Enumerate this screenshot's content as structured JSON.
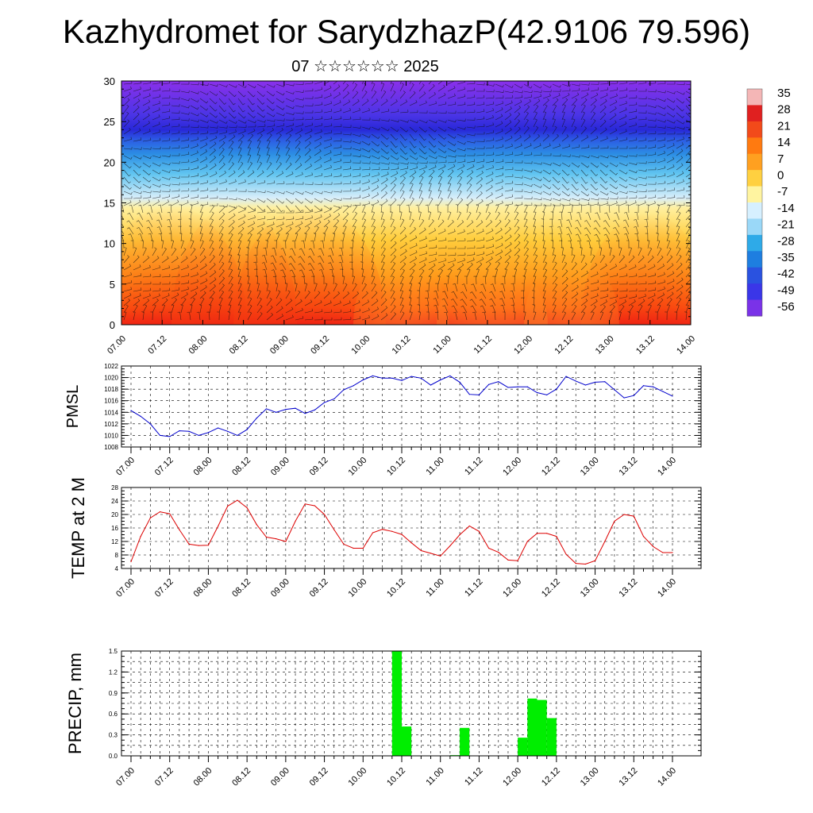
{
  "header": {
    "title": "Kazhydromet for SarydzhazP(42.9106 79.596)",
    "subtitle": "07 ☆☆☆☆☆☆ 2025"
  },
  "chart_data": [
    {
      "type": "heatmap",
      "name": "cross-section",
      "ylim": [
        0,
        30
      ],
      "yticks": [
        0,
        5,
        10,
        15,
        20,
        25,
        30
      ],
      "x_ticks": [
        "07.00",
        "07.12",
        "08.00",
        "08.12",
        "09.00",
        "09.12",
        "10.00",
        "10.12",
        "11.00",
        "11.12",
        "12.00",
        "12.12",
        "13.00",
        "13.12",
        "14.00"
      ],
      "colorbar": {
        "labels": [
          "35",
          "28",
          "21",
          "14",
          "7",
          "0",
          "-7",
          "-14",
          "-21",
          "-28",
          "-35",
          "-42",
          "-49",
          "-56"
        ],
        "colors": [
          "#f4b6b6",
          "#e02020",
          "#f24a1a",
          "#ff7a10",
          "#ffa020",
          "#ffd040",
          "#fff4a0",
          "#d6f0ff",
          "#9ad8f8",
          "#2eaae8",
          "#1e7ee0",
          "#2a52e0",
          "#3a36e8",
          "#7a32e8"
        ]
      }
    },
    {
      "type": "line",
      "name": "PMSL",
      "ylabel": "PMSL",
      "ylim": [
        1008,
        1022
      ],
      "yticks": [
        1008,
        1010,
        1012,
        1014,
        1016,
        1018,
        1020,
        1022
      ],
      "x_ticks": [
        "07.00",
        "07.12",
        "08.00",
        "08.12",
        "09.00",
        "09.12",
        "10.00",
        "10.12",
        "11.00",
        "11.12",
        "12.00",
        "12.12",
        "13.00",
        "13.12",
        "14.00"
      ],
      "color": "#0000cc",
      "x": [
        0,
        3,
        6,
        9,
        12,
        15,
        18,
        21,
        24,
        27,
        30,
        33,
        36,
        39,
        42,
        45,
        48,
        51,
        54,
        57,
        60,
        63,
        66,
        69,
        72,
        75,
        78,
        81,
        84,
        87,
        90,
        93,
        96,
        99,
        102,
        105,
        108,
        111,
        114,
        117,
        120,
        123,
        126,
        129,
        132,
        135,
        138,
        141,
        144,
        147,
        150,
        153,
        156,
        159,
        162,
        165,
        168
      ],
      "y": [
        1014.3,
        1013.3,
        1012,
        1010,
        1009.8,
        1010.8,
        1010.7,
        1010,
        1010.5,
        1011.3,
        1010.7,
        1010,
        1011,
        1013,
        1014.6,
        1014,
        1014.5,
        1014.7,
        1013.8,
        1014.4,
        1015.7,
        1016.3,
        1017.9,
        1018.6,
        1019.6,
        1020.3,
        1019.9,
        1019.9,
        1019.5,
        1020.2,
        1019.9,
        1018.7,
        1019.6,
        1020.3,
        1019.2,
        1017.1,
        1017,
        1018.8,
        1019.3,
        1018.3,
        1018.4,
        1018.4,
        1017.4,
        1017,
        1018,
        1020.2,
        1019.4,
        1018.7,
        1019.2,
        1019.3,
        1017.9,
        1016.5,
        1016.9,
        1018.6,
        1018.4,
        1017.6,
        1016.8
      ]
    },
    {
      "type": "line",
      "name": "TEMP",
      "ylabel": "TEMP at 2 M",
      "ylim": [
        4,
        28
      ],
      "yticks": [
        4,
        8,
        12,
        16,
        20,
        24,
        28
      ],
      "x_ticks": [
        "07.00",
        "07.12",
        "08.00",
        "08.12",
        "09.00",
        "09.12",
        "10.00",
        "10.12",
        "11.00",
        "11.12",
        "12.00",
        "12.12",
        "13.00",
        "13.12",
        "14.00"
      ],
      "color": "#dd0000",
      "x": [
        0,
        3,
        6,
        9,
        12,
        15,
        18,
        21,
        24,
        27,
        30,
        33,
        36,
        39,
        42,
        45,
        48,
        51,
        54,
        57,
        60,
        63,
        66,
        69,
        72,
        75,
        78,
        81,
        84,
        87,
        90,
        93,
        96,
        99,
        102,
        105,
        108,
        111,
        114,
        117,
        120,
        123,
        126,
        129,
        132,
        135,
        138,
        141,
        144,
        147,
        150,
        153,
        156,
        159,
        162,
        165,
        168
      ],
      "y": [
        6,
        13.5,
        19,
        20.8,
        20.2,
        15.5,
        11.2,
        10.8,
        10.9,
        16.5,
        22.5,
        24.2,
        22,
        17,
        13.3,
        12.8,
        12,
        18,
        23.1,
        22.6,
        20,
        15.5,
        11.2,
        10,
        10,
        14.6,
        15.6,
        15,
        14.1,
        11.6,
        9.3,
        8.5,
        7.7,
        10.7,
        14,
        16.6,
        15,
        10,
        8.8,
        6.5,
        6.3,
        12,
        14.4,
        14.4,
        13.5,
        8.2,
        5.5,
        5.3,
        6.3,
        12,
        18,
        20,
        19.5,
        13.5,
        10.5,
        8.7,
        8.7
      ]
    },
    {
      "type": "bar",
      "name": "PRECIP",
      "ylabel": "PRECIP, mm",
      "ylim": [
        0,
        1.5
      ],
      "yticks": [
        "0.0",
        "0.3",
        "0.6",
        "0.9",
        "1.2",
        "1.5"
      ],
      "x_ticks": [
        "07.00",
        "07.12",
        "08.00",
        "08.12",
        "09.00",
        "09.12",
        "10.00",
        "10.12",
        "11.00",
        "11.12",
        "12.00",
        "12.12",
        "13.00",
        "13.12",
        "14.00"
      ],
      "color": "#00ee00",
      "bins": [
        {
          "start": 81,
          "end": 84,
          "value": 1.5
        },
        {
          "start": 84,
          "end": 87,
          "value": 0.42
        },
        {
          "start": 99,
          "end": 102,
          "value": 0.01
        },
        {
          "start": 102,
          "end": 105,
          "value": 0.4
        },
        {
          "start": 120,
          "end": 123,
          "value": 0.26
        },
        {
          "start": 123,
          "end": 126,
          "value": 0.82
        },
        {
          "start": 126,
          "end": 129,
          "value": 0.8
        },
        {
          "start": 129,
          "end": 132,
          "value": 0.54
        }
      ]
    }
  ]
}
